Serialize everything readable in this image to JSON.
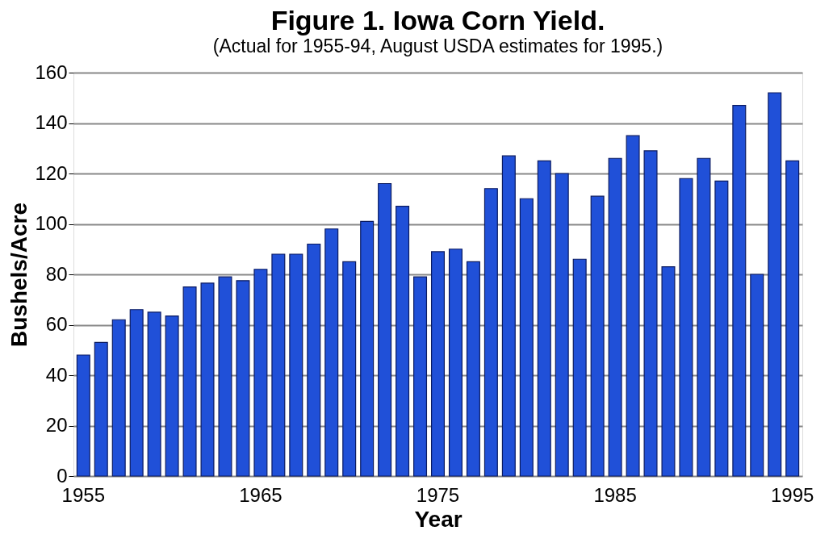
{
  "chart_data": {
    "type": "bar",
    "title": "Figure 1. Iowa Corn Yield.",
    "subtitle": "(Actual for 1955-94, August USDA estimates for 1995.)",
    "xlabel": "Year",
    "ylabel": "Bushels/Acre",
    "categories": [
      "1955",
      null,
      null,
      null,
      null,
      null,
      null,
      null,
      null,
      null,
      "1965",
      null,
      null,
      null,
      null,
      null,
      null,
      null,
      null,
      null,
      "1975",
      null,
      null,
      null,
      null,
      null,
      null,
      null,
      null,
      null,
      "1985",
      null,
      null,
      null,
      null,
      null,
      null,
      null,
      null,
      null,
      "1995"
    ],
    "values": [
      48,
      53,
      62,
      66,
      65,
      63.5,
      75,
      76.5,
      79,
      77.5,
      82,
      88,
      88,
      92,
      98,
      85,
      101,
      116,
      107,
      79,
      89,
      90,
      85,
      114,
      127,
      110,
      125,
      120,
      86,
      111,
      126,
      135,
      129,
      83,
      118,
      126,
      117,
      147,
      80,
      152,
      125
    ],
    "color": "#2050d8",
    "ylim": [
      0,
      160
    ],
    "yticks": [
      0,
      20,
      40,
      60,
      80,
      100,
      120,
      140,
      160
    ],
    "grid": "y"
  }
}
